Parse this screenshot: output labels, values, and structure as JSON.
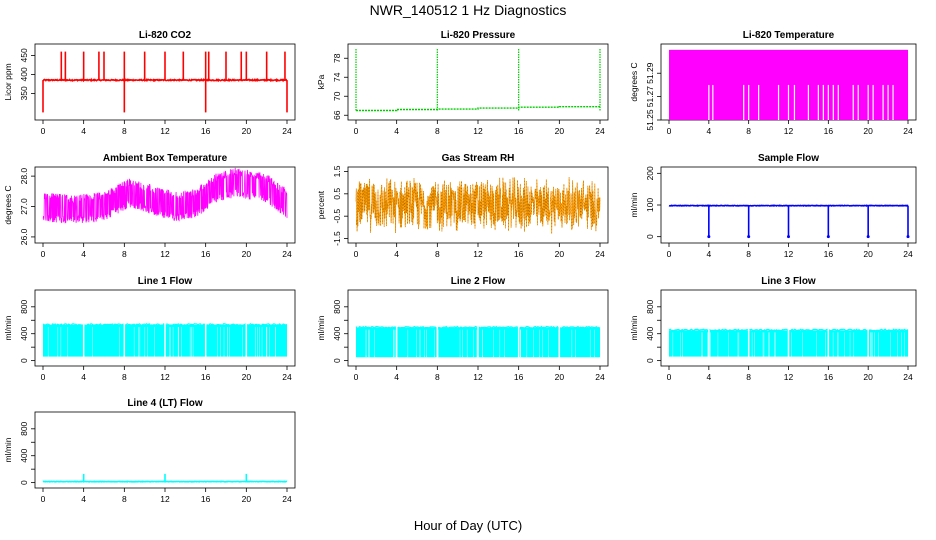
{
  "title": "NWR_140512  1 Hz Diagnostics",
  "xlabel": "Hour of Day (UTC)",
  "chart_data": [
    {
      "type": "line",
      "title": "Li-820 CO2",
      "ylabel": "Licor ppm",
      "color": "#ff0000",
      "xlim": [
        0,
        24
      ],
      "xticks": [
        0,
        4,
        8,
        12,
        16,
        20,
        24
      ],
      "ylim": [
        280,
        480
      ],
      "yticks": [
        350,
        400,
        450
      ],
      "yticklabels": [
        "350",
        "400",
        "450"
      ],
      "baseline": 385,
      "spikes_up": [
        1.8,
        2.2,
        4.0,
        5.5,
        6.0,
        8.0,
        10.0,
        12.0,
        13.8,
        16.0,
        16.3,
        18.0,
        19.5,
        20.0,
        22.0,
        23.8
      ],
      "spike_high": 460,
      "spikes_down": [
        0.0,
        8.0,
        16.0,
        24.0
      ],
      "spike_low": 300
    },
    {
      "type": "line",
      "title": "Li-820 Pressure",
      "ylabel": "kPa",
      "color": "#00cc00",
      "xlim": [
        0,
        24
      ],
      "xticks": [
        0,
        4,
        8,
        12,
        16,
        20,
        24
      ],
      "ylim": [
        65,
        81
      ],
      "yticks": [
        66,
        70,
        74,
        78
      ],
      "yticklabels": [
        "66",
        "70",
        "74",
        "78"
      ],
      "segments": [
        [
          0,
          67.0
        ],
        [
          4,
          67.2
        ],
        [
          8,
          67.3
        ],
        [
          12,
          67.5
        ],
        [
          16,
          67.7
        ],
        [
          20,
          67.8
        ],
        [
          24,
          68.0
        ]
      ],
      "spikes_up": [
        0.0,
        8.0,
        16.0,
        24.0
      ],
      "spike_high": 80
    },
    {
      "type": "area",
      "title": "Li-820 Temperature",
      "ylabel": "degrees C",
      "color": "#ff00ff",
      "xlim": [
        0,
        24
      ],
      "xticks": [
        0,
        4,
        8,
        12,
        16,
        20,
        24
      ],
      "ylim": [
        51.25,
        51.315
      ],
      "yticks": [
        51.25,
        51.27,
        51.29
      ],
      "yticklabels": [
        "51.25",
        "51.27",
        "51.29"
      ],
      "band": [
        51.25,
        51.31
      ],
      "gaps": [
        4.0,
        4.4,
        7.5,
        8.0,
        9.0,
        11.0,
        12.0,
        12.6,
        14.0,
        15.0,
        15.5,
        16.0,
        16.5,
        17.0,
        18.5,
        19.0,
        20.0,
        20.5,
        21.5,
        22.0,
        22.5
      ],
      "gap_top": 51.28
    },
    {
      "type": "area",
      "title": "Ambient Box Temperature",
      "ylabel": "degrees C",
      "color": "#ff00ff",
      "xlim": [
        0,
        24
      ],
      "xticks": [
        0,
        4,
        8,
        12,
        16,
        20,
        24
      ],
      "ylim": [
        25.8,
        28.3
      ],
      "yticks": [
        26.0,
        27.0,
        28.0
      ],
      "yticklabels": [
        "26.0",
        "27.0",
        "28.0"
      ],
      "center": [
        [
          0,
          27.0
        ],
        [
          3,
          26.9
        ],
        [
          6,
          27.0
        ],
        [
          8.5,
          27.45
        ],
        [
          10,
          27.3
        ],
        [
          13,
          27.0
        ],
        [
          15,
          27.1
        ],
        [
          17,
          27.6
        ],
        [
          19,
          27.8
        ],
        [
          22,
          27.6
        ],
        [
          24,
          27.1
        ]
      ],
      "halfwidth": 0.42
    },
    {
      "type": "scatter",
      "title": "Gas Stream RH",
      "ylabel": "percent",
      "color": "#ff9900",
      "color2": "#996600",
      "xlim": [
        0,
        24
      ],
      "xticks": [
        0,
        4,
        8,
        12,
        16,
        20,
        24
      ],
      "ylim": [
        -1.7,
        1.7
      ],
      "yticks": [
        -1.5,
        -0.5,
        0.5,
        1.5
      ],
      "yticklabels": [
        "-1.5",
        "-0.5",
        "0.5",
        "1.5"
      ],
      "center": 0.0,
      "range": 1.2
    },
    {
      "type": "line",
      "title": "Sample Flow",
      "ylabel": "ml/min",
      "color": "#0000ff",
      "xlim": [
        0,
        24
      ],
      "xticks": [
        0,
        4,
        8,
        12,
        16,
        20,
        24
      ],
      "ylim": [
        -20,
        220
      ],
      "yticks": [
        0,
        100,
        200
      ],
      "yticklabels": [
        "0",
        "100",
        "200"
      ],
      "baseline": 98,
      "spikes_down": [
        4.0,
        8.0,
        12.0,
        16.0,
        20.0,
        24.0
      ],
      "spike_low": 0
    },
    {
      "type": "area",
      "title": "Line 1 Flow",
      "ylabel": "ml/min",
      "color": "#00ffff",
      "xlim": [
        0,
        24
      ],
      "xticks": [
        0,
        4,
        8,
        12,
        16,
        20,
        24
      ],
      "ylim": [
        -80,
        1050
      ],
      "yticks": [
        0,
        200,
        400,
        600,
        800
      ],
      "yticklabels": [
        "0",
        "400",
        "800"
      ],
      "band": [
        60,
        530
      ],
      "gaps": [
        4.0,
        8.0,
        12.0,
        16.0,
        20.0
      ]
    },
    {
      "type": "area",
      "title": "Line 2 Flow",
      "ylabel": "ml/min",
      "color": "#00ffff",
      "xlim": [
        0,
        24
      ],
      "xticks": [
        0,
        4,
        8,
        12,
        16,
        20,
        24
      ],
      "ylim": [
        -80,
        1050
      ],
      "yticks": [
        0,
        200,
        400,
        600,
        800
      ],
      "yticklabels": [
        "0",
        "400",
        "800"
      ],
      "band": [
        50,
        490
      ],
      "gaps": [
        4.0,
        8.0,
        12.0,
        16.0,
        20.0
      ]
    },
    {
      "type": "area",
      "title": "Line 3 Flow",
      "ylabel": "ml/min",
      "color": "#00ffff",
      "xlim": [
        0,
        24
      ],
      "xticks": [
        0,
        4,
        8,
        12,
        16,
        20,
        24
      ],
      "ylim": [
        -80,
        1050
      ],
      "yticks": [
        0,
        200,
        400,
        600,
        800
      ],
      "yticklabels": [
        "0",
        "400",
        "800"
      ],
      "band": [
        60,
        450
      ],
      "gaps": [
        4.0,
        8.0,
        12.0,
        16.0,
        20.0
      ]
    },
    {
      "type": "line",
      "title": "Line 4 (LT) Flow",
      "ylabel": "ml/min",
      "color": "#00ffff",
      "xlim": [
        0,
        24
      ],
      "xticks": [
        0,
        4,
        8,
        12,
        16,
        20,
        24
      ],
      "ylim": [
        -80,
        1050
      ],
      "yticks": [
        0,
        200,
        400,
        600,
        800
      ],
      "yticklabels": [
        "0",
        "400",
        "800"
      ],
      "baseline": 15,
      "spikes_up": [
        4.0,
        12.0,
        20.0
      ],
      "spike_high": 130
    }
  ]
}
